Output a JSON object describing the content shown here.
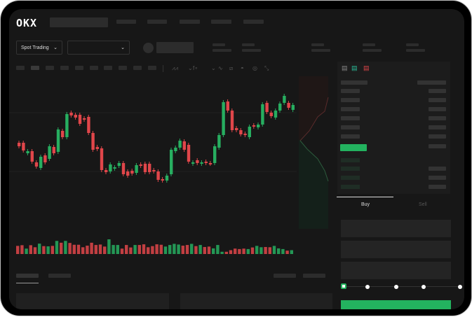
{
  "header": {
    "logo": "OKX"
  },
  "toolbar": {
    "market_type": "Spot Trading",
    "pair_selector": ""
  },
  "trade": {
    "tabs": [
      "Buy",
      "Sell"
    ],
    "active_tab": "Buy",
    "slider_percent": 0,
    "slider_stops": 5
  },
  "colors": {
    "up": "#27ae60",
    "down": "#e0464a",
    "accent": "#23b35f",
    "background": "#171717"
  },
  "icons": [
    "chevron-down-icon",
    "indicator-icon",
    "line-icon",
    "drawing-icon",
    "ruler-icon",
    "camera-icon",
    "settings-icon",
    "fullscreen-icon",
    "orderbook-both-icon",
    "orderbook-bids-icon",
    "orderbook-asks-icon"
  ],
  "chart_data": {
    "type": "candlestick",
    "candles": [
      [
        97,
        92,
        "d"
      ],
      [
        97,
        86,
        "d"
      ],
      [
        82,
        85,
        "u"
      ],
      [
        85,
        70,
        "d"
      ],
      [
        69,
        63,
        "d"
      ],
      [
        61,
        77,
        "u"
      ],
      [
        79,
        69,
        "d"
      ],
      [
        74,
        92,
        "u"
      ],
      [
        91,
        82,
        "d"
      ],
      [
        84,
        116,
        "u"
      ],
      [
        114,
        105,
        "d"
      ],
      [
        105,
        138,
        "u"
      ],
      [
        140,
        136,
        "d"
      ],
      [
        137,
        133,
        "d"
      ],
      [
        137,
        124,
        "d"
      ],
      [
        132,
        130,
        "d"
      ],
      [
        134,
        111,
        "d"
      ],
      [
        111,
        87,
        "d"
      ],
      [
        91,
        88,
        "d"
      ],
      [
        89,
        58,
        "d"
      ],
      [
        58,
        55,
        "d"
      ],
      [
        56,
        66,
        "u"
      ],
      [
        60,
        62,
        "u"
      ],
      [
        64,
        68,
        "u"
      ],
      [
        68,
        52,
        "d"
      ],
      [
        56,
        50,
        "d"
      ],
      [
        57,
        53,
        "d"
      ],
      [
        54,
        65,
        "u"
      ],
      [
        66,
        64,
        "d"
      ],
      [
        67,
        55,
        "d"
      ],
      [
        67,
        55,
        "d"
      ],
      [
        58,
        56,
        "d"
      ],
      [
        56,
        44,
        "d"
      ],
      [
        45,
        43,
        "d"
      ],
      [
        43,
        50,
        "u"
      ],
      [
        52,
        87,
        "u"
      ],
      [
        85,
        90,
        "u"
      ],
      [
        90,
        100,
        "u"
      ],
      [
        99,
        87,
        "d"
      ],
      [
        94,
        70,
        "d"
      ],
      [
        67,
        69,
        "u"
      ],
      [
        72,
        68,
        "d"
      ],
      [
        67,
        69,
        "u"
      ],
      [
        70,
        68,
        "d"
      ],
      [
        68,
        67,
        "d"
      ],
      [
        68,
        92,
        "u"
      ],
      [
        90,
        108,
        "u"
      ],
      [
        108,
        155,
        "u"
      ],
      [
        156,
        143,
        "d"
      ],
      [
        143,
        115,
        "d"
      ],
      [
        118,
        115,
        "d"
      ],
      [
        115,
        109,
        "d"
      ],
      [
        110,
        108,
        "d"
      ],
      [
        105,
        120,
        "u"
      ],
      [
        122,
        120,
        "d"
      ],
      [
        119,
        123,
        "u"
      ],
      [
        123,
        152,
        "u"
      ],
      [
        154,
        141,
        "d"
      ],
      [
        140,
        135,
        "d"
      ],
      [
        133,
        143,
        "u"
      ],
      [
        143,
        153,
        "u"
      ],
      [
        154,
        164,
        "u"
      ],
      [
        154,
        147,
        "d"
      ],
      [
        144,
        151,
        "u"
      ]
    ],
    "volume": [
      36,
      39,
      24,
      39,
      30,
      46,
      35,
      34,
      36,
      58,
      50,
      58,
      49,
      41,
      41,
      30,
      37,
      50,
      40,
      42,
      33,
      65,
      40,
      40,
      24,
      40,
      29,
      40,
      40,
      43,
      30,
      35,
      43,
      41,
      33,
      40,
      45,
      42,
      37,
      40,
      45,
      35,
      40,
      31,
      33,
      25,
      40,
      10,
      10,
      17,
      24,
      22,
      24,
      22,
      29,
      36,
      30,
      31,
      30,
      36,
      25,
      22,
      15,
      17
    ]
  }
}
